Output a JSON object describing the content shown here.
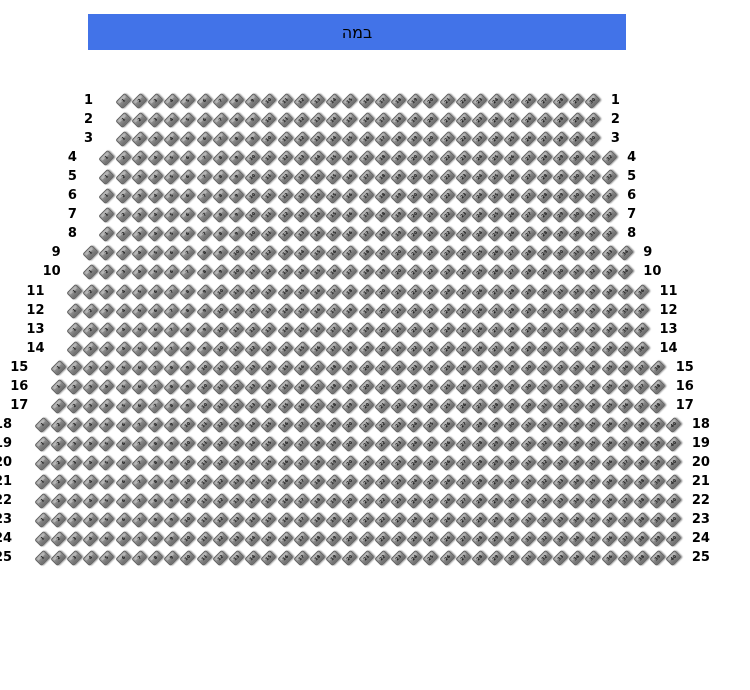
{
  "stage": {
    "label": "במה",
    "background_color": "#4273e8",
    "text_color": "#000000"
  },
  "seating": {
    "seat_color": "#8d8d8d",
    "row_label_color": "#000000",
    "seat_numbering_direction": "left-to-right",
    "rows": [
      {
        "row": "1",
        "seats": 30
      },
      {
        "row": "2",
        "seats": 30
      },
      {
        "row": "3",
        "seats": 30
      },
      {
        "row": "4",
        "seats": 32
      },
      {
        "row": "5",
        "seats": 32
      },
      {
        "row": "6",
        "seats": 32
      },
      {
        "row": "7",
        "seats": 32
      },
      {
        "row": "8",
        "seats": 32
      },
      {
        "row": "9",
        "seats": 34
      },
      {
        "row": "10",
        "seats": 34
      },
      {
        "row": "11",
        "seats": 36
      },
      {
        "row": "12",
        "seats": 36
      },
      {
        "row": "13",
        "seats": 36
      },
      {
        "row": "14",
        "seats": 36
      },
      {
        "row": "15",
        "seats": 38
      },
      {
        "row": "16",
        "seats": 38
      },
      {
        "row": "17",
        "seats": 38
      },
      {
        "row": "18",
        "seats": 40
      },
      {
        "row": "19",
        "seats": 40
      },
      {
        "row": "20",
        "seats": 40
      },
      {
        "row": "21",
        "seats": 40
      },
      {
        "row": "22",
        "seats": 40
      },
      {
        "row": "23",
        "seats": 40
      },
      {
        "row": "24",
        "seats": 40
      },
      {
        "row": "25",
        "seats": 40
      }
    ]
  }
}
